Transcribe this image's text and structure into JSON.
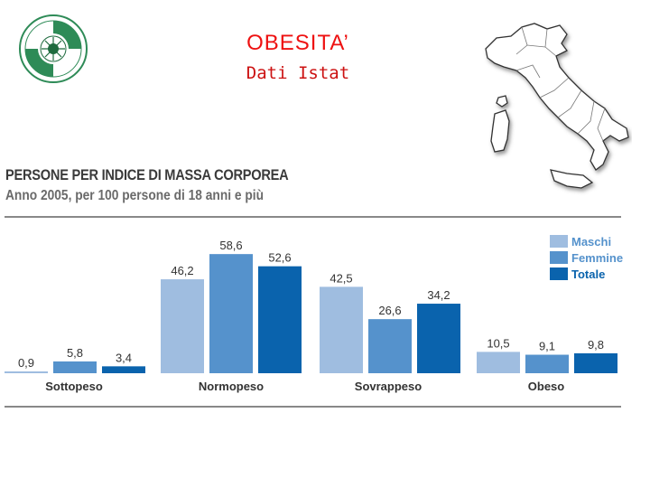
{
  "slide": {
    "title": "OBESITA’",
    "subtitle": "Dati Istat"
  },
  "icons": {
    "logo": "association-seal-logo",
    "map": "italy-regions-map"
  },
  "colors": {
    "maschi": "#9fbde0",
    "femmine": "#5592cc",
    "totale": "#0a63ad",
    "axis": "#888888"
  },
  "chart_data": {
    "type": "bar",
    "title": "PERSONE PER INDICE DI MASSA CORPOREA",
    "subtitle": "Anno 2005, per 100 persone di 18 anni e più",
    "categories": [
      "Sottopeso",
      "Normopeso",
      "Sovrappeso",
      "Obeso"
    ],
    "series": [
      {
        "name": "Maschi",
        "values": [
          0.9,
          46.2,
          42.5,
          10.5
        ],
        "labels": [
          "0,9",
          "46,2",
          "42,5",
          "10,5"
        ]
      },
      {
        "name": "Femmine",
        "values": [
          5.8,
          58.6,
          26.6,
          9.1
        ],
        "labels": [
          "5,8",
          "58,6",
          "26,6",
          "9,1"
        ]
      },
      {
        "name": "Totale",
        "values": [
          3.4,
          52.6,
          34.2,
          9.8
        ],
        "labels": [
          "3,4",
          "52,6",
          "34,2",
          "9,8"
        ]
      }
    ],
    "ylim": [
      0,
      60
    ],
    "legend": "top-right",
    "grid": false
  }
}
